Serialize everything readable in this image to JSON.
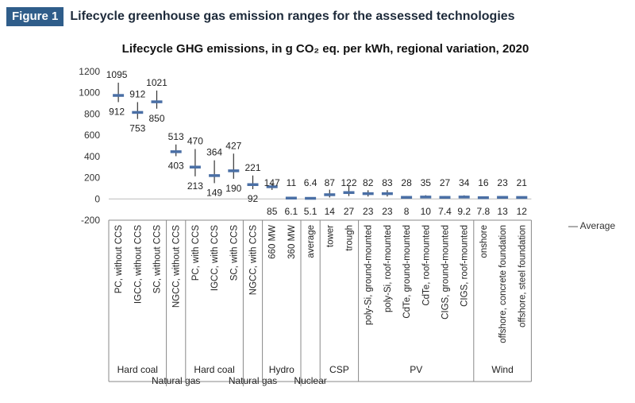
{
  "figure": {
    "label": "Figure 1",
    "title": "Lifecycle greenhouse gas emission ranges for the assessed technologies"
  },
  "chart_data": {
    "type": "range",
    "title": "Lifecycle GHG emissions, in g CO₂ eq. per kWh, regional variation, 2020",
    "ylim": [
      -200,
      1200
    ],
    "yticks": [
      -200,
      0,
      200,
      400,
      600,
      800,
      1000,
      1200
    ],
    "legend": "— Average",
    "categories": [
      {
        "label": "PC, without CCS",
        "max": 1095,
        "min": 912,
        "avg": 975,
        "max_label": "1095",
        "min_label": "912"
      },
      {
        "label": "IGCC, without CCS",
        "max": 912,
        "min": 753,
        "avg": 815,
        "max_label": "912",
        "min_label": "753"
      },
      {
        "label": "SC, without CCS",
        "max": 1021,
        "min": 850,
        "avg": 915,
        "max_label": "1021",
        "min_label": "850"
      },
      {
        "label": "NGCC, without CCS",
        "max": 513,
        "min": 403,
        "avg": 445,
        "max_label": "513",
        "min_label": "403"
      },
      {
        "label": "PC, with CCS",
        "max": 470,
        "min": 213,
        "avg": 300,
        "max_label": "470",
        "min_label": "213"
      },
      {
        "label": "IGCC, with CCS",
        "max": 364,
        "min": 149,
        "avg": 220,
        "max_label": "364",
        "min_label": "149"
      },
      {
        "label": "SC, with CCS",
        "max": 427,
        "min": 190,
        "avg": 265,
        "max_label": "427",
        "min_label": "190"
      },
      {
        "label": "NGCC, with CCS",
        "max": 221,
        "min": 92,
        "avg": 135,
        "max_label": "221",
        "min_label": "92"
      },
      {
        "label": "660 MW",
        "max": 147,
        "min": 85,
        "avg": 115,
        "max_label": "147",
        "min_label": "85"
      },
      {
        "label": "360 MW",
        "max": 11,
        "min": 6.1,
        "avg": 8,
        "max_label": "11",
        "min_label": "6.1"
      },
      {
        "label": "average",
        "max": 6.4,
        "min": 5.1,
        "avg": 5.7,
        "max_label": "6.4",
        "min_label": "5.1"
      },
      {
        "label": "tower",
        "max": 87,
        "min": 14,
        "avg": 40,
        "max_label": "87",
        "min_label": "14"
      },
      {
        "label": "trough",
        "max": 122,
        "min": 27,
        "avg": 60,
        "max_label": "122",
        "min_label": "27"
      },
      {
        "label": "poly-Si, ground-mounted",
        "max": 82,
        "min": 23,
        "avg": 50,
        "max_label": "82",
        "min_label": "23"
      },
      {
        "label": "poly-Si, roof-mounted",
        "max": 83,
        "min": 23,
        "avg": 50,
        "max_label": "83",
        "min_label": "23"
      },
      {
        "label": "CdTe, ground-mounted",
        "max": 28,
        "min": 8,
        "avg": 15,
        "max_label": "28",
        "min_label": "8"
      },
      {
        "label": "CdTe, roof-mounted",
        "max": 35,
        "min": 10,
        "avg": 18,
        "max_label": "35",
        "min_label": "10"
      },
      {
        "label": "CIGS, ground-mounted",
        "max": 27,
        "min": 7.4,
        "avg": 15,
        "max_label": "27",
        "min_label": "7.4"
      },
      {
        "label": "CIGS, roof-mounted",
        "max": 34,
        "min": 9.2,
        "avg": 18,
        "max_label": "34",
        "min_label": "9.2"
      },
      {
        "label": "onshore",
        "max": 16,
        "min": 7.8,
        "avg": 12,
        "max_label": "16",
        "min_label": "7.8"
      },
      {
        "label": "offshore, concrete foundation",
        "max": 23,
        "min": 13,
        "avg": 15,
        "max_label": "23",
        "min_label": "13"
      },
      {
        "label": "offshore, steel foundation",
        "max": 21,
        "min": 12,
        "avg": 14,
        "max_label": "21",
        "min_label": "12"
      }
    ],
    "groups": [
      {
        "label": "Hard coal",
        "start": 0,
        "end": 2,
        "row": 1
      },
      {
        "label": "Natural gas",
        "start": 3,
        "end": 3,
        "row": 2
      },
      {
        "label": "Hard coal",
        "start": 4,
        "end": 6,
        "row": 1
      },
      {
        "label": "Natural gas",
        "start": 7,
        "end": 7,
        "row": 2
      },
      {
        "label": "Hydro",
        "start": 8,
        "end": 9,
        "row": 1
      },
      {
        "label": "Nuclear",
        "start": 10,
        "end": 10,
        "row": 2
      },
      {
        "label": "CSP",
        "start": 11,
        "end": 12,
        "row": 1
      },
      {
        "label": "PV",
        "start": 13,
        "end": 18,
        "row": 1
      },
      {
        "label": "Wind",
        "start": 19,
        "end": 21,
        "row": 1
      }
    ]
  }
}
